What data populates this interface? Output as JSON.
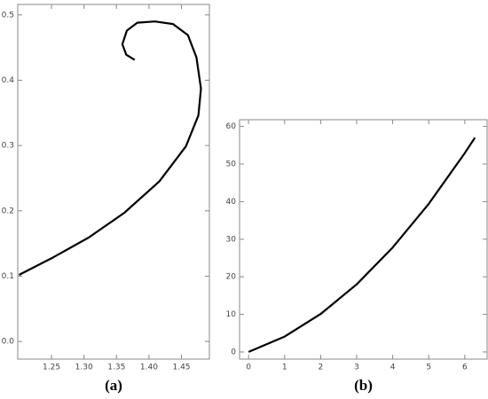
{
  "chart_data": [
    {
      "type": "line",
      "caption": "(a)",
      "x": [
        1.2,
        1.253,
        1.307,
        1.362,
        1.416,
        1.457,
        1.476,
        1.48,
        1.473,
        1.46,
        1.437,
        1.409,
        1.382,
        1.366,
        1.359,
        1.365,
        1.378
      ],
      "values": [
        0.102,
        0.129,
        0.159,
        0.197,
        0.245,
        0.299,
        0.346,
        0.387,
        0.435,
        0.469,
        0.486,
        0.49,
        0.488,
        0.476,
        0.455,
        0.439,
        0.431
      ],
      "color": "#000000",
      "xlim": [
        1.198,
        1.493
      ],
      "ylim": [
        -0.027,
        0.516
      ],
      "xticks": [
        1.25,
        {
          "value": 1.3,
          "label": "1.30"
        },
        1.35,
        {
          "value": 1.4,
          "label": "1.40"
        },
        1.45
      ],
      "yticks": [
        {
          "value": 0,
          "label": "0.0"
        },
        0.1,
        0.2,
        0.3,
        0.4,
        0.5
      ]
    },
    {
      "type": "line",
      "caption": "(b)",
      "x": [
        0,
        1,
        2,
        3,
        4,
        5,
        6,
        6.28
      ],
      "values": [
        0,
        4.1,
        10.1,
        18.0,
        27.8,
        39.4,
        52.9,
        57.0
      ],
      "color": "#000000",
      "xlim": [
        -0.25,
        6.62
      ],
      "ylim": [
        -1.9,
        61.8
      ],
      "xticks": [
        0,
        1,
        2,
        3,
        4,
        5,
        6
      ],
      "yticks": [
        0,
        10,
        20,
        30,
        40,
        50,
        60
      ]
    }
  ]
}
